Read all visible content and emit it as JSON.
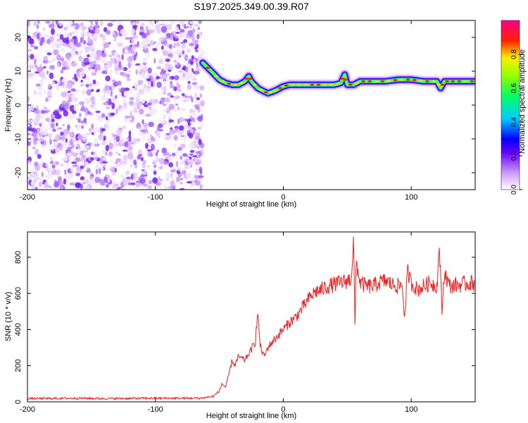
{
  "chart_data": [
    {
      "type": "heatmap",
      "title": "S197.2025.349.00.39.R07",
      "xlabel": "Height of straight line (km)",
      "ylabel": "Frequency (Hz)",
      "xlim": [
        -200,
        150
      ],
      "ylim": [
        -25,
        25
      ],
      "xticks": [
        -200,
        -100,
        0,
        100
      ],
      "yticks": [
        -20,
        -10,
        0,
        10,
        20
      ],
      "noise_region_x": [
        -200,
        -63
      ],
      "ridge": {
        "x": [
          -63,
          -55,
          -50,
          -45,
          -40,
          -35,
          -30,
          -27,
          -25,
          -20,
          -15,
          -12,
          -8,
          -5,
          0,
          5,
          10,
          20,
          30,
          40,
          45,
          48,
          50,
          55,
          60,
          70,
          80,
          90,
          100,
          110,
          120,
          123,
          126,
          130,
          140,
          150
        ],
        "freq": [
          12.5,
          9.5,
          7.5,
          6.5,
          6.0,
          6.0,
          7.0,
          8.5,
          7.0,
          5.0,
          4.0,
          3.5,
          4.0,
          4.5,
          5.5,
          6.0,
          6.0,
          6.0,
          6.0,
          6.0,
          6.5,
          9.0,
          6.0,
          6.0,
          7.0,
          7.0,
          7.0,
          7.5,
          7.5,
          7.0,
          7.0,
          5.0,
          7.0,
          7.0,
          7.0,
          7.0
        ]
      },
      "colorbar": {
        "label": "Normalized spectral amplitude",
        "range": [
          0,
          1
        ],
        "ticks": [
          "0.0",
          "0.2",
          "0.4",
          "0.6",
          "0.8"
        ]
      }
    },
    {
      "type": "line",
      "xlabel": "Height of straight line (km)",
      "ylabel": "SNR (10 * v/v)",
      "xlim": [
        -200,
        150
      ],
      "ylim": [
        0,
        940
      ],
      "xticks": [
        -200,
        -100,
        0,
        100
      ],
      "yticks": [
        0,
        200,
        400,
        600,
        800
      ],
      "series_color": "#ee2222",
      "series": [
        {
          "name": "SNR",
          "x": [
            -200,
            -180,
            -160,
            -140,
            -120,
            -100,
            -80,
            -65,
            -60,
            -55,
            -50,
            -48,
            -45,
            -43,
            -40,
            -38,
            -35,
            -30,
            -25,
            -22,
            -20,
            -18,
            -15,
            -12,
            -10,
            -5,
            0,
            5,
            10,
            15,
            20,
            25,
            30,
            35,
            40,
            45,
            50,
            53,
            55,
            56,
            57,
            60,
            65,
            70,
            75,
            80,
            85,
            90,
            93,
            95,
            97,
            100,
            105,
            110,
            115,
            120,
            122,
            124,
            126,
            130,
            140,
            150
          ],
          "y": [
            18,
            19,
            20,
            18,
            19,
            20,
            20,
            20,
            25,
            30,
            60,
            100,
            80,
            140,
            230,
            200,
            250,
            230,
            290,
            330,
            490,
            310,
            250,
            300,
            320,
            360,
            400,
            440,
            470,
            520,
            570,
            610,
            620,
            640,
            650,
            660,
            670,
            680,
            900,
            400,
            780,
            660,
            640,
            640,
            660,
            670,
            650,
            640,
            650,
            450,
            720,
            660,
            620,
            640,
            660,
            640,
            860,
            500,
            720,
            640,
            650,
            660
          ]
        }
      ]
    }
  ]
}
